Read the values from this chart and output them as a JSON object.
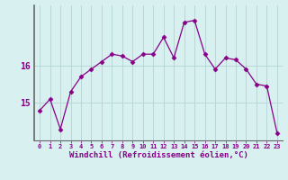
{
  "x": [
    0,
    1,
    2,
    3,
    4,
    5,
    6,
    7,
    8,
    9,
    10,
    11,
    12,
    13,
    14,
    15,
    16,
    17,
    18,
    19,
    20,
    21,
    22,
    23
  ],
  "y": [
    14.8,
    15.1,
    14.3,
    15.3,
    15.7,
    15.9,
    16.1,
    16.3,
    16.25,
    16.1,
    16.3,
    16.3,
    16.75,
    16.2,
    17.15,
    17.2,
    16.3,
    15.9,
    16.2,
    16.15,
    15.9,
    15.5,
    15.45,
    14.2
  ],
  "line_color": "#880088",
  "marker": "D",
  "marker_size": 2.5,
  "bg_color": "#d8f0f0",
  "grid_color": "#b8d8d8",
  "xlabel": "Windchill (Refroidissement éolien,°C)",
  "ytick_vals": [
    15,
    16
  ],
  "xlim": [
    -0.5,
    23.5
  ],
  "ylim": [
    14.0,
    17.6
  ],
  "label_color": "#880088",
  "spine_color": "#666666",
  "xtick_labels": [
    "0",
    "1",
    "2",
    "3",
    "4",
    "5",
    "6",
    "7",
    "8",
    "9",
    "10",
    "11",
    "12",
    "13",
    "14",
    "15",
    "16",
    "17",
    "18",
    "19",
    "20",
    "21",
    "22",
    "23"
  ]
}
